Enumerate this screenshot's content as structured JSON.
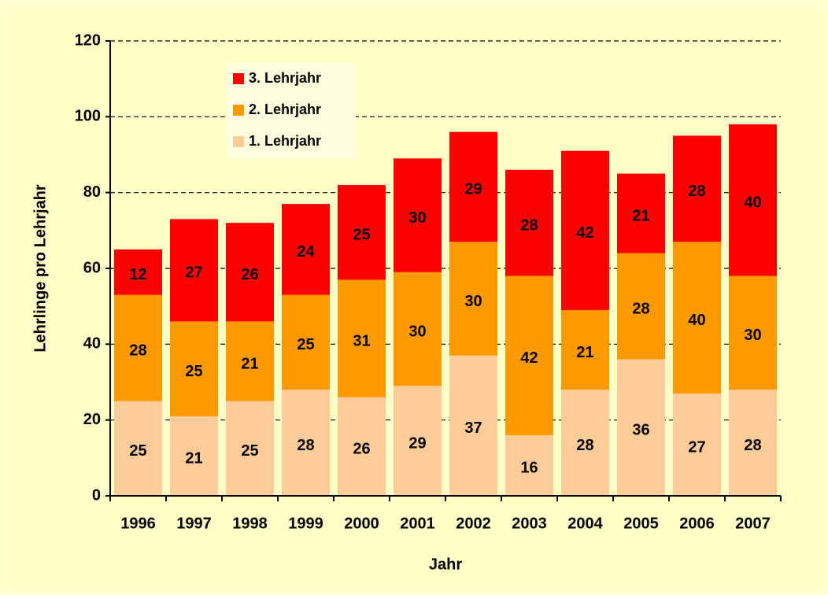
{
  "chart_data": {
    "type": "stacked-bar",
    "x_label": "Jahr",
    "y_label": "Lehrlinge pro Lehrjahr",
    "categories": [
      "1996",
      "1997",
      "1998",
      "1999",
      "2000",
      "2001",
      "2002",
      "2003",
      "2004",
      "2005",
      "2006",
      "2007"
    ],
    "series": [
      {
        "name": "1. Lehrjahr",
        "color": "#ffcc99",
        "values": [
          25,
          21,
          25,
          28,
          26,
          29,
          37,
          16,
          28,
          36,
          27,
          28
        ]
      },
      {
        "name": "2. Lehrjahr",
        "color": "#ff9900",
        "values": [
          28,
          25,
          21,
          25,
          31,
          30,
          30,
          42,
          21,
          28,
          40,
          30
        ]
      },
      {
        "name": "3. Lehrjahr",
        "color": "#ff0000",
        "values": [
          12,
          27,
          26,
          24,
          25,
          30,
          29,
          28,
          42,
          21,
          28,
          40
        ]
      }
    ],
    "ylim": [
      0,
      120
    ],
    "yticks": [
      0,
      20,
      40,
      60,
      80,
      100,
      120
    ],
    "grid": true,
    "legend": "upper left"
  }
}
